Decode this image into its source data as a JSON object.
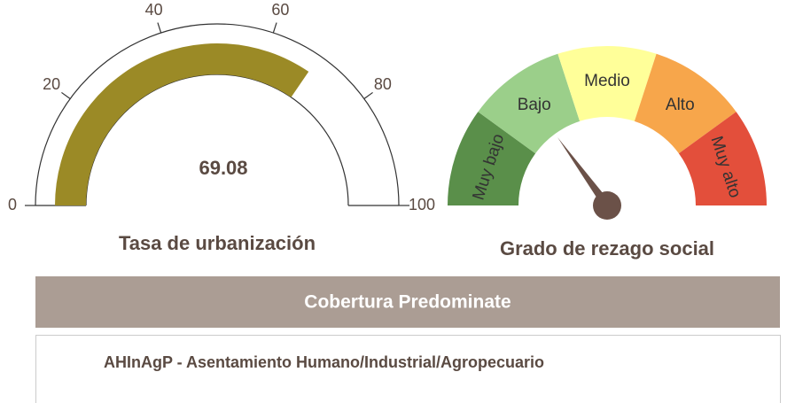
{
  "chart_data": [
    {
      "type": "gauge",
      "title": "Tasa de urbanización",
      "value": 69.08,
      "ylim": [
        0,
        100
      ],
      "yticks": [
        0,
        20,
        40,
        60,
        80,
        100
      ],
      "color": "#9b8a26"
    },
    {
      "type": "band_gauge",
      "title": "Grado de rezago social",
      "categories": [
        "Muy bajo",
        "Bajo",
        "Medio",
        "Alto",
        "Muy alto"
      ],
      "colors": [
        "#5a8f4a",
        "#9bcf8a",
        "#ffff99",
        "#f7a64b",
        "#e34f3b"
      ],
      "value": 1
    }
  ],
  "coverage": {
    "header": "Cobertura Predominate",
    "text": "AHInAgP - Asentamiento Humano/Industrial/Agropecuario"
  }
}
